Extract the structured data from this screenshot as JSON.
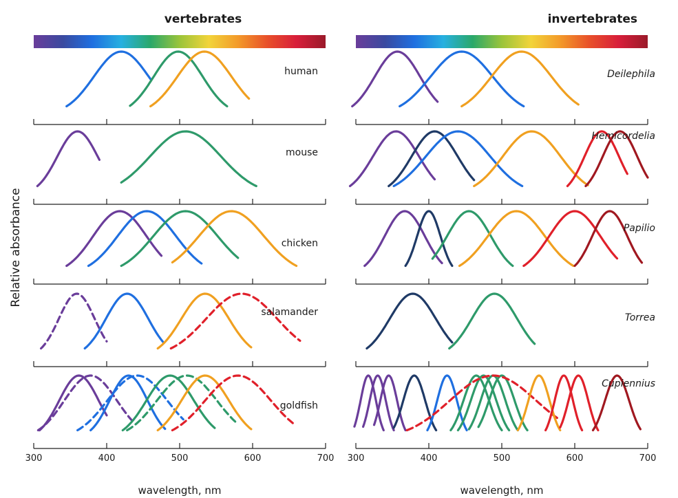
{
  "figure": {
    "ylabel": "Relative absorbance",
    "colors": {
      "violet": "#6a3d9a",
      "navy": "#1f3a66",
      "blue": "#1f6fe0",
      "green": "#2e9a6a",
      "orange": "#f0a020",
      "red": "#e0202a",
      "darkred": "#a01820"
    },
    "spectrum_stops": [
      "#6a3d9a",
      "#3a4aa0",
      "#1f6fe0",
      "#27b0e0",
      "#2aa86a",
      "#9bc43a",
      "#f2d43a",
      "#f39a2a",
      "#e8502a",
      "#d81e3a",
      "#9a1a2a"
    ]
  },
  "chart_data": [
    {
      "type": "line",
      "group": "vertebrates",
      "title": "vertebrates",
      "xlabel": "wavelength, nm",
      "xlim": [
        300,
        700
      ],
      "x_ticks": [
        "300",
        "400",
        "500",
        "600",
        "700"
      ],
      "panels": [
        {
          "label": "human",
          "series": [
            {
              "peak": 420,
              "range": [
                345,
                460
              ],
              "color": "blue",
              "style": "solid"
            },
            {
              "peak": 498,
              "range": [
                432,
                565
              ],
              "color": "green",
              "style": "solid"
            },
            {
              "peak": 534,
              "range": [
                460,
                595
              ],
              "color": "orange",
              "style": "solid"
            }
          ]
        },
        {
          "label": "mouse",
          "series": [
            {
              "peak": 360,
              "range": [
                305,
                390
              ],
              "color": "violet",
              "style": "solid"
            },
            {
              "peak": 508,
              "range": [
                420,
                605
              ],
              "color": "green",
              "style": "solid"
            }
          ]
        },
        {
          "label": "chicken",
          "series": [
            {
              "peak": 418,
              "range": [
                345,
                475
              ],
              "color": "violet",
              "style": "solid"
            },
            {
              "peak": 455,
              "range": [
                375,
                530
              ],
              "color": "blue",
              "style": "solid"
            },
            {
              "peak": 508,
              "range": [
                420,
                580
              ],
              "color": "green",
              "style": "solid"
            },
            {
              "peak": 571,
              "range": [
                490,
                660
              ],
              "color": "orange",
              "style": "solid"
            }
          ]
        },
        {
          "label": "salamander",
          "series": [
            {
              "peak": 359,
              "range": [
                310,
                400
              ],
              "color": "violet",
              "style": "dashed"
            },
            {
              "peak": 428,
              "range": [
                370,
                478
              ],
              "color": "blue",
              "style": "solid"
            },
            {
              "peak": 535,
              "range": [
                470,
                598
              ],
              "color": "orange",
              "style": "solid"
            },
            {
              "peak": 585,
              "range": [
                488,
                665
              ],
              "color": "red",
              "style": "dashed"
            }
          ]
        },
        {
          "label": "goldfish",
          "series": [
            {
              "peak": 362,
              "range": [
                308,
                400
              ],
              "color": "violet",
              "style": "solid"
            },
            {
              "peak": 378,
              "range": [
                306,
                435
              ],
              "color": "violet",
              "style": "dashed"
            },
            {
              "peak": 430,
              "range": [
                378,
                480
              ],
              "color": "blue",
              "style": "solid"
            },
            {
              "peak": 442,
              "range": [
                360,
                505
              ],
              "color": "blue",
              "style": "dashed"
            },
            {
              "peak": 487,
              "range": [
                422,
                548
              ],
              "color": "green",
              "style": "solid"
            },
            {
              "peak": 510,
              "range": [
                428,
                580
              ],
              "color": "green",
              "style": "dashed"
            },
            {
              "peak": 535,
              "range": [
                470,
                598
              ],
              "color": "orange",
              "style": "solid"
            },
            {
              "peak": 580,
              "range": [
                490,
                655
              ],
              "color": "red",
              "style": "dashed"
            }
          ]
        }
      ]
    },
    {
      "type": "line",
      "group": "invertebrates",
      "title": "invertebrates",
      "xlabel": "wavelength, nm",
      "xlim": [
        300,
        700
      ],
      "x_ticks": [
        "300",
        "400",
        "500",
        "600",
        "700"
      ],
      "panels": [
        {
          "label": "Deilephila",
          "series": [
            {
              "peak": 357,
              "range": [
                295,
                412
              ],
              "color": "violet",
              "style": "solid"
            },
            {
              "peak": 445,
              "range": [
                360,
                530
              ],
              "color": "blue",
              "style": "solid"
            },
            {
              "peak": 527,
              "range": [
                445,
                605
              ],
              "color": "orange",
              "style": "solid"
            }
          ]
        },
        {
          "label": "Hemicordelia",
          "series": [
            {
              "peak": 355,
              "range": [
                292,
                408
              ],
              "color": "violet",
              "style": "solid"
            },
            {
              "peak": 408,
              "range": [
                345,
                462
              ],
              "color": "navy",
              "style": "solid"
            },
            {
              "peak": 440,
              "range": [
                352,
                528
              ],
              "color": "blue",
              "style": "solid"
            },
            {
              "peak": 541,
              "range": [
                462,
                618
              ],
              "color": "orange",
              "style": "solid"
            },
            {
              "peak": 637,
              "range": [
                590,
                672
              ],
              "color": "red",
              "style": "solid"
            },
            {
              "peak": 662,
              "range": [
                615,
                700
              ],
              "color": "darkred",
              "style": "solid"
            }
          ]
        },
        {
          "label": "Papilio",
          "series": [
            {
              "peak": 367,
              "range": [
                312,
                418
              ],
              "color": "violet",
              "style": "solid"
            },
            {
              "peak": 400,
              "range": [
                368,
                432
              ],
              "color": "navy",
              "style": "solid"
            },
            {
              "peak": 455,
              "range": [
                405,
                515
              ],
              "color": "green",
              "style": "solid"
            },
            {
              "peak": 520,
              "range": [
                442,
                598
              ],
              "color": "orange",
              "style": "solid"
            },
            {
              "peak": 600,
              "range": [
                530,
                658
              ],
              "color": "red",
              "style": "solid"
            },
            {
              "peak": 648,
              "range": [
                600,
                692
              ],
              "color": "darkred",
              "style": "solid"
            }
          ]
        },
        {
          "label": "Torrea",
          "series": [
            {
              "peak": 378,
              "range": [
                315,
                432
              ],
              "color": "navy",
              "style": "solid"
            },
            {
              "peak": 490,
              "range": [
                428,
                545
              ],
              "color": "green",
              "style": "solid"
            }
          ]
        },
        {
          "label": "Cupiennius",
          "series": [
            {
              "peak": 317,
              "range": [
                298,
                338
              ],
              "color": "violet",
              "style": "solid"
            },
            {
              "peak": 330,
              "range": [
                310,
                352
              ],
              "color": "violet",
              "style": "solid"
            },
            {
              "peak": 345,
              "range": [
                325,
                368
              ],
              "color": "violet",
              "style": "solid"
            },
            {
              "peak": 380,
              "range": [
                352,
                410
              ],
              "color": "navy",
              "style": "solid"
            },
            {
              "peak": 425,
              "range": [
                398,
                452
              ],
              "color": "blue",
              "style": "solid"
            },
            {
              "peak": 465,
              "range": [
                430,
                500
              ],
              "color": "green",
              "style": "solid"
            },
            {
              "peak": 475,
              "range": [
                440,
                510
              ],
              "color": "green",
              "style": "solid"
            },
            {
              "peak": 488,
              "range": [
                455,
                522
              ],
              "color": "green",
              "style": "solid"
            },
            {
              "peak": 500,
              "range": [
                468,
                535
              ],
              "color": "green",
              "style": "solid"
            },
            {
              "peak": 488,
              "range": [
                370,
                578
              ],
              "color": "red",
              "style": "dashed"
            },
            {
              "peak": 551,
              "range": [
                522,
                580
              ],
              "color": "orange",
              "style": "solid"
            },
            {
              "peak": 585,
              "range": [
                560,
                610
              ],
              "color": "red",
              "style": "solid"
            },
            {
              "peak": 605,
              "range": [
                580,
                632
              ],
              "color": "red",
              "style": "solid"
            },
            {
              "peak": 658,
              "range": [
                625,
                690
              ],
              "color": "darkred",
              "style": "solid"
            }
          ]
        }
      ]
    }
  ]
}
